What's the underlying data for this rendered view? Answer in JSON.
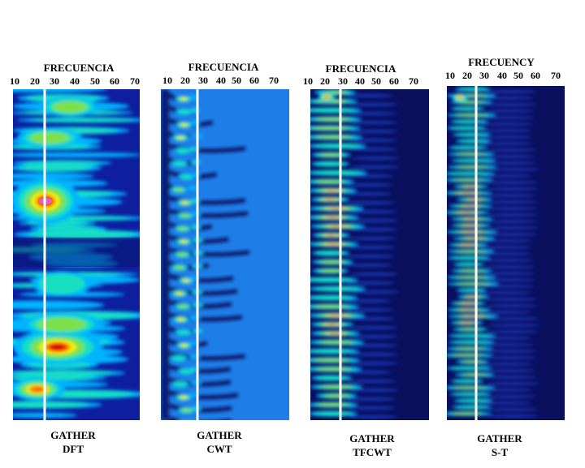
{
  "panels": [
    {
      "freq_title": "FRECUENCIA",
      "ticks": [
        "10",
        "20",
        "30",
        "40",
        "50",
        "60",
        "70"
      ],
      "caption_line1": "GATHER",
      "caption_line2": "DFT",
      "style": "dft"
    },
    {
      "freq_title": "FRECUENCIA",
      "ticks": [
        "10",
        "20",
        "30",
        "40",
        "50",
        "60",
        "70"
      ],
      "caption_line1": "GATHER",
      "caption_line2": "CWT",
      "style": "cwt"
    },
    {
      "freq_title": "FRECUENCIA",
      "ticks": [
        "10",
        "20",
        "30",
        "40",
        "50",
        "60",
        "70"
      ],
      "caption_line1": "GATHER",
      "caption_line2": "TFCWT",
      "style": "tfcwt"
    },
    {
      "freq_title": "FRECUENCY",
      "ticks": [
        "10",
        "20",
        "30",
        "40",
        "50",
        "60",
        "70"
      ],
      "caption_line1": "GATHER",
      "caption_line2": "S-T",
      "style": "st"
    }
  ],
  "colors": {
    "dft_background": "#0d1f9e",
    "cwt_background": "#1e7ee8",
    "tfcwt_background": "#0a0f5e",
    "st_background": "#0a0f5e",
    "marker_line": "#ffffff"
  }
}
